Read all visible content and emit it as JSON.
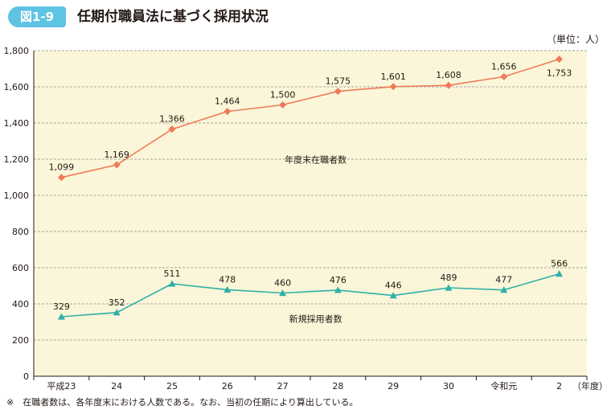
{
  "header": {
    "figure_number": "図1-9",
    "title": "任期付職員法に基づく採用状況"
  },
  "footnote": "※　在職者数は、各年度末における人数である。なお、当初の任期により算出している。",
  "colors": {
    "badge": "#5fc3e4",
    "plot_background": "#fbf6d9",
    "series_incumbent": "#ef7a5a",
    "series_new_hires": "#2fb0a8"
  },
  "chart_data": {
    "type": "line",
    "title": "任期付職員法に基づく採用状況",
    "unit_label": "（単位：人）",
    "xlabel": "（年度）",
    "ylabel": "",
    "categories": [
      "平成23",
      "24",
      "25",
      "26",
      "27",
      "28",
      "29",
      "30",
      "令和元",
      "2"
    ],
    "ylim": [
      0,
      1800
    ],
    "yticks": [
      0,
      200,
      400,
      600,
      800,
      1000,
      1200,
      1400,
      1600,
      1800
    ],
    "ytick_labels": [
      "0",
      "200",
      "400",
      "600",
      "800",
      "1,000",
      "1,200",
      "1,400",
      "1,600",
      "1,800"
    ],
    "grid": true,
    "series": [
      {
        "name": "年度末在職者数",
        "marker": "diamond",
        "values": [
          1099,
          1169,
          1366,
          1464,
          1500,
          1575,
          1601,
          1608,
          1656,
          1753
        ],
        "labels": [
          "1,099",
          "1,169",
          "1,366",
          "1,464",
          "1,500",
          "1,575",
          "1,601",
          "1,608",
          "1,656",
          "1,753"
        ]
      },
      {
        "name": "新規採用者数",
        "marker": "triangle",
        "values": [
          329,
          352,
          511,
          478,
          460,
          476,
          446,
          489,
          477,
          566
        ],
        "labels": [
          "329",
          "352",
          "511",
          "478",
          "460",
          "476",
          "446",
          "489",
          "477",
          "566"
        ]
      }
    ]
  }
}
